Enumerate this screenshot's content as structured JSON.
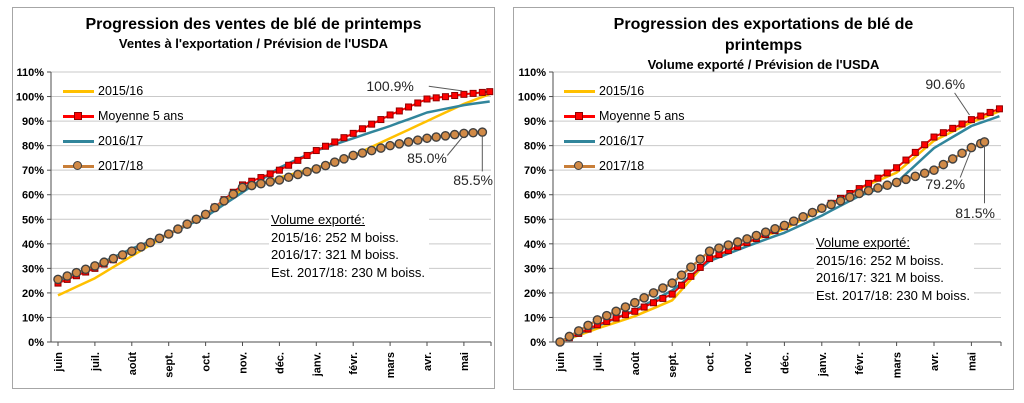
{
  "figure": {
    "background": "#FFFFFF"
  },
  "months": [
    "juin",
    "juil.",
    "août",
    "sept.",
    "oct.",
    "nov.",
    "déc.",
    "janv.",
    "févr.",
    "mars",
    "avr.",
    "mai"
  ],
  "y_axis": {
    "ticks": [
      "0%",
      "10%",
      "20%",
      "30%",
      "40%",
      "50%",
      "60%",
      "70%",
      "80%",
      "90%",
      "100%",
      "110%"
    ],
    "min": 0,
    "max": 110,
    "step": 10
  },
  "colors": {
    "series_2015_16": "#FFC000",
    "series_moyenne": "#FF0000",
    "series_2016_17": "#31859B",
    "series_2017_18": "#D18A47",
    "series_2017_18_line": "#C87E38",
    "grid": "#C9C9C9",
    "axis": "#4D4D4D",
    "panel_border": "#A6A6A6",
    "marker_edge_red": "#900000",
    "marker_edge_orange": "#404040",
    "annotation_text": "#262626",
    "leader": "#595959"
  },
  "charts": [
    {
      "title": "Progression des ventes de blé de printemps",
      "subtitle": "Ventes à l'exportation / Prévision de l'USDA",
      "info_box": {
        "heading": "Volume exporté:",
        "lines": [
          "2015/16: 252 M boiss.",
          "2016/17: 321 M boiss.",
          "Est. 2017/18: 230 M boiss."
        ]
      },
      "chart_data": {
        "type": "line",
        "x_categories": [
          "juin",
          "juil.",
          "août",
          "sept.",
          "oct.",
          "nov.",
          "déc.",
          "janv.",
          "févr.",
          "mars",
          "avr.",
          "mai"
        ],
        "x_unit": "weekly points, ~4 per month",
        "ylim": [
          0,
          110
        ],
        "grid": "horizontal",
        "legend_position": "top-left-vertical",
        "series": [
          {
            "name": "2015/16",
            "color": "#FFC000",
            "marker": "none",
            "monthly_pct": [
              19,
              26,
              35,
              44,
              52,
              62,
              67,
              71,
              76,
              83,
              90,
              97
            ],
            "end_pct": 101,
            "end_month": 11.7
          },
          {
            "name": "Moyenne 5 ans",
            "color": "#FF0000",
            "marker": "square",
            "monthly_pct": [
              24,
              30,
              37,
              44,
              52,
              64,
              70,
              78,
              85,
              92.5,
              99,
              100.9
            ],
            "end_pct": 102,
            "end_month": 11.7
          },
          {
            "name": "2016/17",
            "color": "#31859B",
            "marker": "none",
            "monthly_pct": [
              25,
              31,
              38,
              44,
              51,
              61,
              71,
              78,
              83,
              88,
              93.5,
              96.5
            ],
            "end_pct": 98,
            "end_month": 11.7
          },
          {
            "name": "2017/18",
            "color": "#D18A47",
            "marker": "circle",
            "monthly_pct": [
              25.5,
              31,
              37,
              44,
              52,
              63,
              66,
              70.5,
              76,
              80,
              83,
              85
            ],
            "end_pct": 85.5,
            "end_month": 11.5
          }
        ],
        "annotations": [
          {
            "text": "100.9%",
            "series": "Moyenne 5 ans",
            "label_month": 9.0,
            "label_pct": 104.5,
            "leader_points": [
              [
                10.05,
                104.2
              ],
              [
                10.95,
                102.3
              ]
            ]
          },
          {
            "text": "85.0%",
            "series": "2017/18",
            "label_month": 10.0,
            "label_pct": 75,
            "leader_points": [
              [
                10.55,
                76
              ],
              [
                10.95,
                83.3
              ]
            ]
          },
          {
            "text": "85.5%",
            "series": "2017/18",
            "label_month": 11.25,
            "label_pct": 66,
            "leader_points": [
              [
                11.5,
                69.5
              ],
              [
                11.5,
                83.8
              ]
            ]
          }
        ]
      }
    },
    {
      "title": "Progression des exportations de blé de printemps",
      "subtitle": "Volume exporté / Prévision de l'USDA",
      "info_box": {
        "heading": "Volume exporté:",
        "lines": [
          "2015/16: 252 M boiss.",
          "2016/17: 321 M boiss.",
          "Est. 2017/18: 230 M boiss."
        ]
      },
      "chart_data": {
        "type": "line",
        "x_categories": [
          "juin",
          "juil.",
          "août",
          "sept.",
          "oct.",
          "nov.",
          "déc.",
          "janv.",
          "févr.",
          "mars",
          "avr.",
          "mai"
        ],
        "x_unit": "weekly points, ~4 per month",
        "ylim": [
          0,
          110
        ],
        "grid": "horizontal",
        "legend_position": "top-left-vertical",
        "series": [
          {
            "name": "2015/16",
            "color": "#FFC000",
            "marker": "none",
            "monthly_pct": [
              0,
              5.5,
              10.5,
              17,
              34,
              40.5,
              46,
              54,
              62.5,
              69,
              82,
              89.5
            ],
            "end_pct": 94,
            "end_month": 11.75
          },
          {
            "name": "Moyenne 5 ans",
            "color": "#FF0000",
            "marker": "square",
            "monthly_pct": [
              0,
              7,
              12.5,
              19.5,
              34,
              40.5,
              47,
              54.5,
              62.5,
              71,
              83.5,
              90.6
            ],
            "end_pct": 95,
            "end_month": 11.75
          },
          {
            "name": "2016/17",
            "color": "#31859B",
            "marker": "none",
            "monthly_pct": [
              0,
              6.5,
              13,
              21,
              33,
              39,
              44.5,
              51.5,
              59.5,
              65,
              79,
              88
            ],
            "end_pct": 92,
            "end_month": 11.75
          },
          {
            "name": "2017/18",
            "color": "#D18A47",
            "marker": "circle",
            "monthly_pct": [
              0,
              9,
              16,
              24,
              37,
              42,
              47.5,
              54.5,
              60.5,
              65,
              70,
              79.2
            ],
            "end_pct": 81.5,
            "end_month": 11.35
          }
        ],
        "annotations": [
          {
            "text": "90.6%",
            "series": "Moyenne 5 ans",
            "label_month": 10.3,
            "label_pct": 105,
            "leader_points": [
              [
                10.55,
                101.5
              ],
              [
                10.95,
                92.5
              ]
            ]
          },
          {
            "text": "79.2%",
            "series": "2017/18",
            "label_month": 10.3,
            "label_pct": 64.5,
            "leader_points": [
              [
                10.7,
                67
              ],
              [
                10.97,
                77.5
              ]
            ]
          },
          {
            "text": "81.5%",
            "series": "2017/18",
            "label_month": 11.1,
            "label_pct": 52.5,
            "leader_points": [
              [
                11.35,
                56.5
              ],
              [
                11.35,
                79.5
              ]
            ]
          }
        ]
      }
    }
  ]
}
